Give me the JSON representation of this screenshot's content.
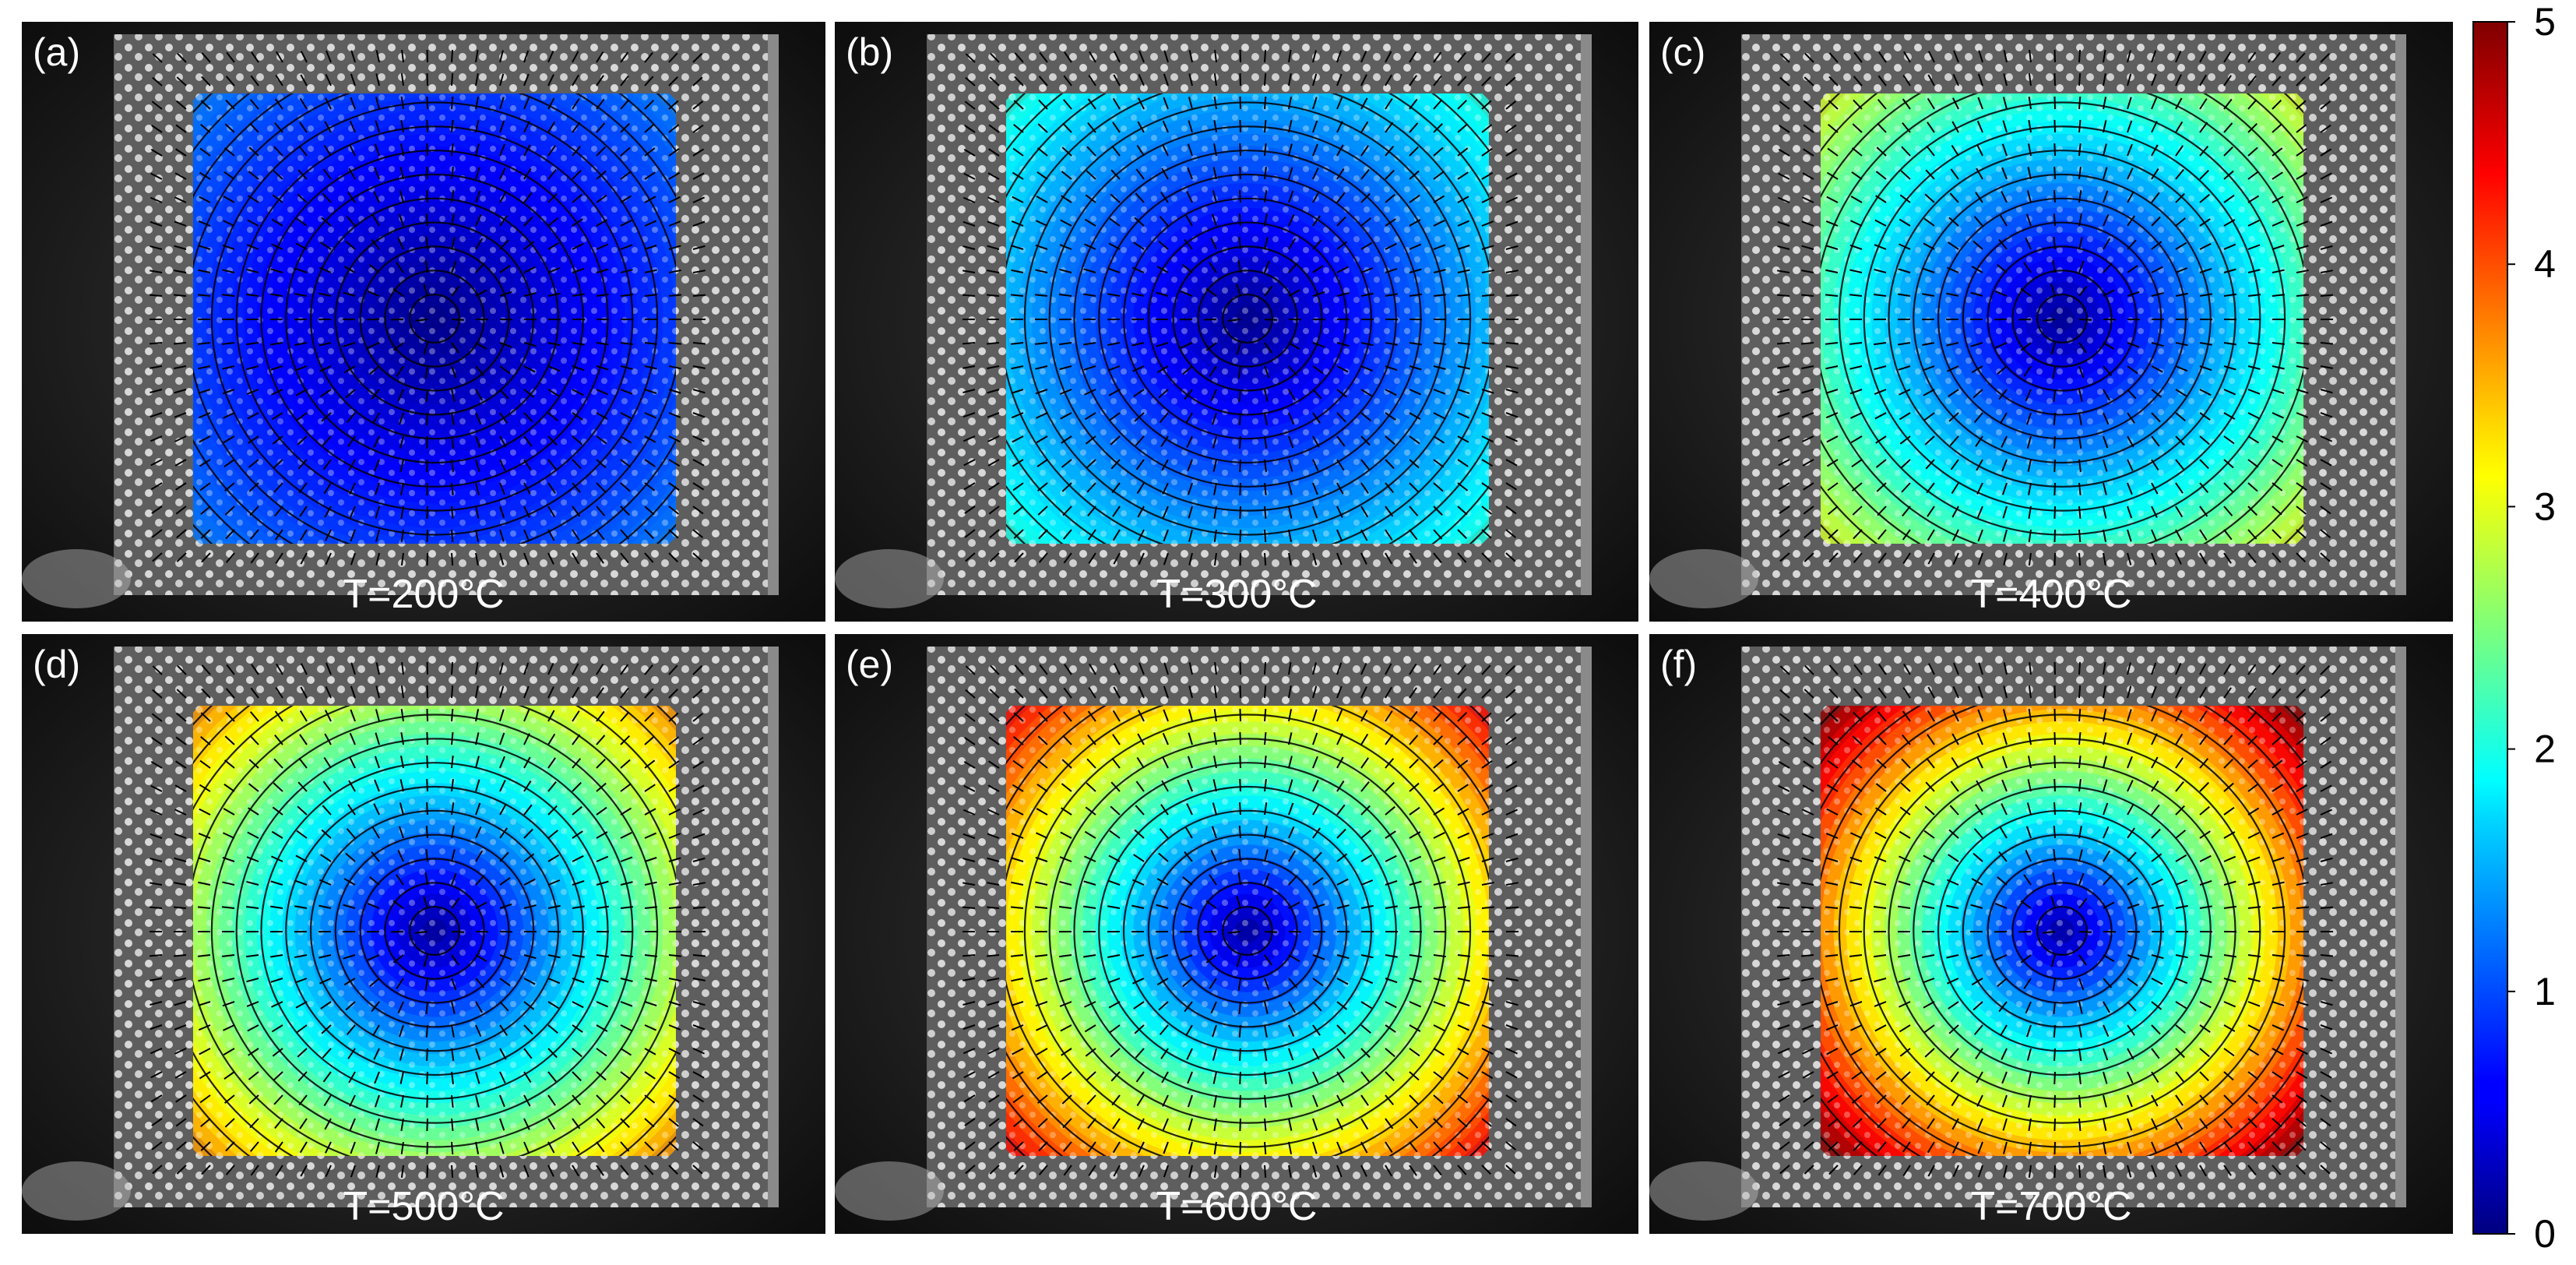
{
  "panels": [
    {
      "label": "(a)",
      "temperature": "T=200°C",
      "max_value": 1.2
    },
    {
      "label": "(b)",
      "temperature": "T=300°C",
      "max_value": 2.0
    },
    {
      "label": "(c)",
      "temperature": "T=400°C",
      "max_value": 2.9
    },
    {
      "label": "(d)",
      "temperature": "T=500°C",
      "max_value": 3.6
    },
    {
      "label": "(e)",
      "temperature": "T=600°C",
      "max_value": 4.3
    },
    {
      "label": "(f)",
      "temperature": "T=700°C",
      "max_value": 4.9
    }
  ],
  "colorbar": {
    "min": 0,
    "max": 5,
    "ticks": [
      "0",
      "1",
      "2",
      "3",
      "4",
      "5"
    ],
    "colormap": "jet"
  }
}
